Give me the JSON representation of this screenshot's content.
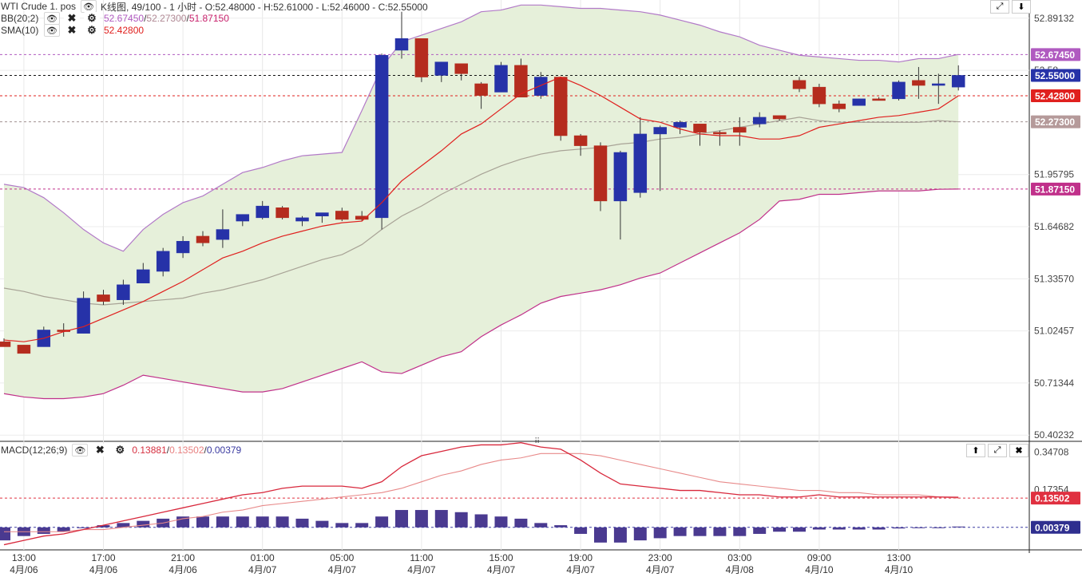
{
  "header": {
    "symbol": "WTI Crude 1. pos",
    "chart_type": "K线图",
    "info": ", 49/100 - 1 小时 - O:52.48000 - H:52.61000 - L:52.46000 - C:52.55000"
  },
  "indicators": {
    "bb_name": "BB(20;2)",
    "bb_upper": "52.67450",
    "bb_mid": "52.27300",
    "bb_lower": "51.87150",
    "sma_name": "SMA(10)",
    "sma_value": "52.42800",
    "macd_name": "MACD(12;26;9)",
    "macd_value": "0.13881",
    "macd_signal": "0.13502",
    "macd_hist": "0.00379"
  },
  "colors": {
    "bull": "#2632a8",
    "bear": "#b52c1e",
    "bb_fill": "#e6f0da",
    "bb_upper_line": "#b27ac8",
    "bb_lower_line": "#c0308a",
    "bb_mid_line": "#a8a396",
    "sma_line": "#e0201e",
    "macd_line": "#d8283c",
    "signal_line": "#e88a8a",
    "hist": "#4a3a90"
  },
  "chart_data": {
    "type": "candlestick",
    "title": "WTI Crude 1. pos",
    "y_ticks": [
      "52.89132",
      "52.58",
      "51.95795",
      "51.64682",
      "51.33570",
      "51.02457",
      "50.71344",
      "50.40232"
    ],
    "y_range": [
      50.37,
      53.0
    ],
    "x_ticks": [
      {
        "i": 1,
        "time": "13:00",
        "date": "4月/06"
      },
      {
        "i": 5,
        "time": "17:00",
        "date": "4月/06"
      },
      {
        "i": 9,
        "time": "21:00",
        "date": "4月/06"
      },
      {
        "i": 13,
        "time": "01:00",
        "date": "4月/07"
      },
      {
        "i": 17,
        "time": "05:00",
        "date": "4月/07"
      },
      {
        "i": 21,
        "time": "11:00",
        "date": "4月/07"
      },
      {
        "i": 25,
        "time": "15:00",
        "date": "4月/07"
      },
      {
        "i": 29,
        "time": "19:00",
        "date": "4月/07"
      },
      {
        "i": 33,
        "time": "23:00",
        "date": "4月/07"
      },
      {
        "i": 37,
        "time": "03:00",
        "date": "4月/08"
      },
      {
        "i": 41,
        "time": "09:00",
        "date": "4月/10"
      },
      {
        "i": 45,
        "time": "13:00",
        "date": "4月/10"
      }
    ],
    "candles": [
      {
        "o": 50.96,
        "h": 50.98,
        "l": 50.93,
        "c": 50.93
      },
      {
        "o": 50.94,
        "h": 50.94,
        "l": 50.89,
        "c": 50.89
      },
      {
        "o": 50.93,
        "h": 51.05,
        "l": 50.93,
        "c": 51.03
      },
      {
        "o": 51.03,
        "h": 51.07,
        "l": 50.99,
        "c": 51.02
      },
      {
        "o": 51.01,
        "h": 51.26,
        "l": 51.01,
        "c": 51.22
      },
      {
        "o": 51.24,
        "h": 51.27,
        "l": 51.18,
        "c": 51.2
      },
      {
        "o": 51.21,
        "h": 51.33,
        "l": 51.18,
        "c": 51.3
      },
      {
        "o": 51.31,
        "h": 51.43,
        "l": 51.31,
        "c": 51.39
      },
      {
        "o": 51.38,
        "h": 51.52,
        "l": 51.35,
        "c": 51.5
      },
      {
        "o": 51.49,
        "h": 51.59,
        "l": 51.46,
        "c": 51.56
      },
      {
        "o": 51.59,
        "h": 51.62,
        "l": 51.53,
        "c": 51.55
      },
      {
        "o": 51.57,
        "h": 51.75,
        "l": 51.52,
        "c": 51.63
      },
      {
        "o": 51.68,
        "h": 51.72,
        "l": 51.65,
        "c": 51.72
      },
      {
        "o": 51.7,
        "h": 51.8,
        "l": 51.69,
        "c": 51.77
      },
      {
        "o": 51.76,
        "h": 51.77,
        "l": 51.69,
        "c": 51.7
      },
      {
        "o": 51.68,
        "h": 51.71,
        "l": 51.65,
        "c": 51.7
      },
      {
        "o": 51.71,
        "h": 51.73,
        "l": 51.67,
        "c": 51.73
      },
      {
        "o": 51.74,
        "h": 51.76,
        "l": 51.68,
        "c": 51.69
      },
      {
        "o": 51.71,
        "h": 51.74,
        "l": 51.68,
        "c": 51.69
      },
      {
        "o": 51.7,
        "h": 52.68,
        "l": 51.63,
        "c": 52.67
      },
      {
        "o": 52.7,
        "h": 52.93,
        "l": 52.65,
        "c": 52.77
      },
      {
        "o": 52.77,
        "h": 52.77,
        "l": 52.51,
        "c": 52.54
      },
      {
        "o": 52.55,
        "h": 52.63,
        "l": 52.51,
        "c": 52.63
      },
      {
        "o": 52.62,
        "h": 52.62,
        "l": 52.52,
        "c": 52.56
      },
      {
        "o": 52.5,
        "h": 52.51,
        "l": 52.35,
        "c": 52.43
      },
      {
        "o": 52.45,
        "h": 52.63,
        "l": 52.45,
        "c": 52.61
      },
      {
        "o": 52.61,
        "h": 52.65,
        "l": 52.42,
        "c": 52.42
      },
      {
        "o": 52.43,
        "h": 52.57,
        "l": 52.41,
        "c": 52.54
      },
      {
        "o": 52.54,
        "h": 52.54,
        "l": 52.16,
        "c": 52.19
      },
      {
        "o": 52.19,
        "h": 52.2,
        "l": 52.07,
        "c": 52.13
      },
      {
        "o": 52.13,
        "h": 52.15,
        "l": 51.74,
        "c": 51.8
      },
      {
        "o": 51.8,
        "h": 52.1,
        "l": 51.57,
        "c": 52.09
      },
      {
        "o": 51.85,
        "h": 52.3,
        "l": 51.82,
        "c": 52.2
      },
      {
        "o": 52.2,
        "h": 52.25,
        "l": 51.86,
        "c": 52.24
      },
      {
        "o": 52.24,
        "h": 52.28,
        "l": 52.2,
        "c": 52.27
      },
      {
        "o": 52.26,
        "h": 52.26,
        "l": 52.13,
        "c": 52.21
      },
      {
        "o": 52.21,
        "h": 52.22,
        "l": 52.13,
        "c": 52.2
      },
      {
        "o": 52.24,
        "h": 52.3,
        "l": 52.13,
        "c": 52.21
      },
      {
        "o": 52.26,
        "h": 52.33,
        "l": 52.24,
        "c": 52.3
      },
      {
        "o": 52.31,
        "h": 52.31,
        "l": 52.28,
        "c": 52.29
      },
      {
        "o": 52.52,
        "h": 52.54,
        "l": 52.45,
        "c": 52.47
      },
      {
        "o": 52.48,
        "h": 52.5,
        "l": 52.36,
        "c": 52.38
      },
      {
        "o": 52.38,
        "h": 52.4,
        "l": 52.33,
        "c": 52.35
      },
      {
        "o": 52.37,
        "h": 52.41,
        "l": 52.37,
        "c": 52.41
      },
      {
        "o": 52.41,
        "h": 52.42,
        "l": 52.4,
        "c": 52.4
      },
      {
        "o": 52.41,
        "h": 52.52,
        "l": 52.4,
        "c": 52.51
      },
      {
        "o": 52.52,
        "h": 52.6,
        "l": 52.41,
        "c": 52.49
      },
      {
        "o": 52.49,
        "h": 52.56,
        "l": 52.38,
        "c": 52.5
      },
      {
        "o": 52.48,
        "h": 52.61,
        "l": 52.46,
        "c": 52.55
      }
    ],
    "bb_upper": [
      51.9,
      51.88,
      51.82,
      51.73,
      51.63,
      51.55,
      51.5,
      51.63,
      51.72,
      51.79,
      51.83,
      51.9,
      51.97,
      52.0,
      52.04,
      52.07,
      52.08,
      52.09,
      52.34,
      52.6,
      52.75,
      52.79,
      52.83,
      52.87,
      52.93,
      52.94,
      52.97,
      52.97,
      52.96,
      52.95,
      52.95,
      52.94,
      52.93,
      52.91,
      52.88,
      52.85,
      52.81,
      52.78,
      52.73,
      52.7,
      52.67,
      52.66,
      52.65,
      52.64,
      52.64,
      52.63,
      52.65,
      52.65,
      52.675
    ],
    "bb_mid": [
      51.28,
      51.26,
      51.23,
      51.21,
      51.19,
      51.18,
      51.19,
      51.2,
      51.21,
      51.22,
      51.25,
      51.27,
      51.3,
      51.33,
      51.37,
      51.41,
      51.45,
      51.48,
      51.54,
      51.63,
      51.71,
      51.77,
      51.84,
      51.9,
      51.96,
      52.01,
      52.05,
      52.08,
      52.1,
      52.11,
      52.12,
      52.14,
      52.15,
      52.17,
      52.18,
      52.2,
      52.22,
      52.24,
      52.26,
      52.28,
      52.3,
      52.28,
      52.27,
      52.27,
      52.27,
      52.27,
      52.27,
      52.28,
      52.273
    ],
    "bb_lower": [
      50.65,
      50.63,
      50.62,
      50.62,
      50.63,
      50.65,
      50.7,
      50.76,
      50.74,
      50.72,
      50.7,
      50.68,
      50.66,
      50.66,
      50.68,
      50.72,
      50.76,
      50.8,
      50.84,
      50.78,
      50.77,
      50.82,
      50.87,
      50.9,
      50.99,
      51.06,
      51.12,
      51.19,
      51.23,
      51.25,
      51.27,
      51.3,
      51.34,
      51.37,
      51.43,
      51.49,
      51.55,
      51.61,
      51.69,
      51.8,
      51.81,
      51.84,
      51.84,
      51.85,
      51.86,
      51.86,
      51.86,
      51.87,
      51.8715
    ],
    "sma10": [
      50.97,
      50.96,
      50.98,
      51.02,
      51.05,
      51.1,
      51.15,
      51.2,
      51.26,
      51.32,
      51.39,
      51.46,
      51.5,
      51.55,
      51.59,
      51.62,
      51.65,
      51.67,
      51.68,
      51.79,
      51.92,
      52.01,
      52.1,
      52.2,
      52.26,
      52.35,
      52.44,
      52.49,
      52.54,
      52.49,
      52.43,
      52.36,
      52.29,
      52.27,
      52.23,
      52.2,
      52.19,
      52.19,
      52.17,
      52.17,
      52.19,
      52.24,
      52.26,
      52.28,
      52.3,
      52.31,
      52.33,
      52.35,
      52.428
    ],
    "macd_y_ticks": [
      "0.34708",
      "0.17354"
    ],
    "macd_y_range": [
      -0.1,
      0.4
    ],
    "macd": [
      -0.08,
      -0.06,
      -0.04,
      -0.03,
      -0.01,
      0.01,
      0.03,
      0.05,
      0.07,
      0.09,
      0.11,
      0.13,
      0.15,
      0.16,
      0.18,
      0.19,
      0.19,
      0.19,
      0.18,
      0.21,
      0.28,
      0.33,
      0.35,
      0.37,
      0.38,
      0.38,
      0.39,
      0.37,
      0.36,
      0.31,
      0.25,
      0.2,
      0.19,
      0.18,
      0.17,
      0.17,
      0.16,
      0.15,
      0.15,
      0.14,
      0.14,
      0.15,
      0.14,
      0.14,
      0.14,
      0.14,
      0.14,
      0.14,
      0.13881
    ],
    "signal": [
      -0.02,
      -0.02,
      -0.02,
      -0.02,
      -0.01,
      -0.01,
      0.0,
      0.01,
      0.02,
      0.04,
      0.05,
      0.07,
      0.08,
      0.1,
      0.11,
      0.12,
      0.13,
      0.14,
      0.15,
      0.16,
      0.18,
      0.21,
      0.24,
      0.26,
      0.29,
      0.31,
      0.32,
      0.34,
      0.34,
      0.34,
      0.33,
      0.31,
      0.29,
      0.27,
      0.25,
      0.23,
      0.21,
      0.2,
      0.19,
      0.18,
      0.17,
      0.17,
      0.16,
      0.16,
      0.15,
      0.15,
      0.15,
      0.14,
      0.13502
    ],
    "histogram": [
      -0.06,
      -0.04,
      -0.03,
      -0.02,
      0.0,
      0.01,
      0.02,
      0.03,
      0.04,
      0.05,
      0.05,
      0.05,
      0.05,
      0.05,
      0.05,
      0.04,
      0.03,
      0.02,
      0.02,
      0.05,
      0.08,
      0.08,
      0.08,
      0.07,
      0.06,
      0.05,
      0.04,
      0.02,
      0.01,
      -0.03,
      -0.07,
      -0.07,
      -0.06,
      -0.05,
      -0.04,
      -0.04,
      -0.04,
      -0.04,
      -0.03,
      -0.02,
      -0.02,
      -0.01,
      -0.01,
      -0.01,
      -0.01,
      -0.005,
      0.0,
      0.0,
      0.00379
    ]
  }
}
